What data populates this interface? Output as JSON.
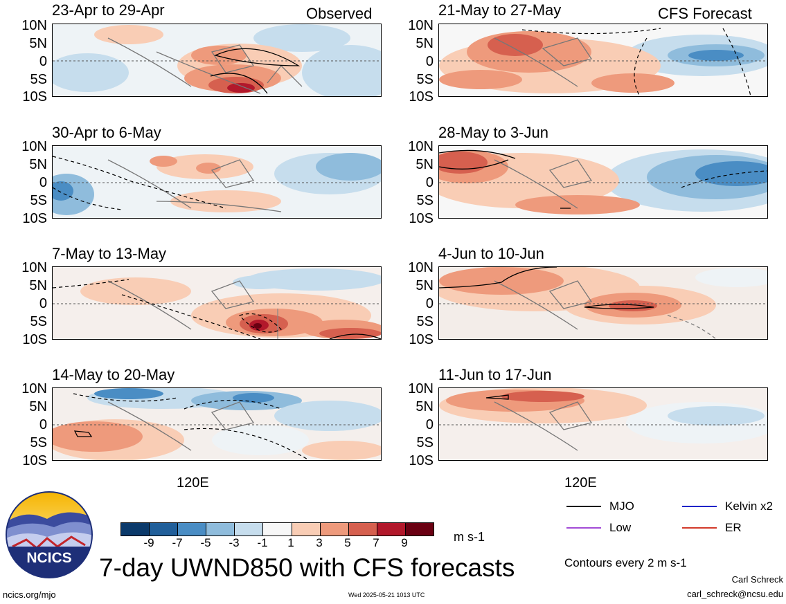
{
  "panels": [
    {
      "title": "23-Apr to 29-Apr",
      "corner": "Observed"
    },
    {
      "title": "30-Apr to 6-May",
      "corner": ""
    },
    {
      "title": "7-May to 13-May",
      "corner": ""
    },
    {
      "title": "14-May to 20-May",
      "corner": ""
    },
    {
      "title": "21-May to 27-May",
      "corner": "CFS Forecast"
    },
    {
      "title": "28-May to 3-Jun",
      "corner": ""
    },
    {
      "title": "4-Jun to 10-Jun",
      "corner": ""
    },
    {
      "title": "11-Jun to 17-Jun",
      "corner": ""
    }
  ],
  "y_ticks": [
    "10N",
    "5N",
    "0",
    "5S",
    "10S"
  ],
  "x_tick": "120E",
  "colorbar": {
    "labels": [
      "-9",
      "-7",
      "-5",
      "-3",
      "-1",
      "1",
      "3",
      "5",
      "7",
      "9"
    ],
    "colors": [
      "#0b3a6b",
      "#215f9a",
      "#4a8dc4",
      "#8fbcdc",
      "#c6dded",
      "#f7f7f7",
      "#f9cdb5",
      "#ee9a7c",
      "#d6604f",
      "#b2182b",
      "#6a0012"
    ],
    "unit": "m s-1"
  },
  "legend": [
    {
      "label": "MJO",
      "color": "#000000"
    },
    {
      "label": "Kelvin x2",
      "color": "#1f24c9"
    },
    {
      "label": "Low",
      "color": "#a24ad6"
    },
    {
      "label": "ER",
      "color": "#d23a2a"
    }
  ],
  "contour_note": "Contours every 2 m s-1",
  "title": "7-day UWND850 with CFS forecasts",
  "logo_text": "NCICS",
  "footer": {
    "url": "ncics.org/mjo",
    "timestamp": "Wed 2025-05-21 1013 UTC",
    "author": "Carl Schreck",
    "email": "carl_schreck@ncsu.edu"
  },
  "chart_data": {
    "type": "heatmap",
    "variable": "7-day UWND850",
    "unit": "m s-1",
    "color_levels": [
      -9,
      -7,
      -5,
      -3,
      -1,
      1,
      3,
      5,
      7,
      9
    ],
    "y_axis": [
      "10N",
      "5N",
      "0",
      "5S",
      "10S"
    ],
    "x_axis_label": "120E",
    "panels": [
      "23-Apr to 29-Apr",
      "30-Apr to 6-May",
      "7-May to 13-May",
      "14-May to 20-May",
      "21-May to 27-May",
      "28-May to 3-Jun",
      "4-Jun to 10-Jun",
      "11-Jun to 17-Jun"
    ],
    "observed_panels": 4,
    "forecast_panels": 4
  }
}
